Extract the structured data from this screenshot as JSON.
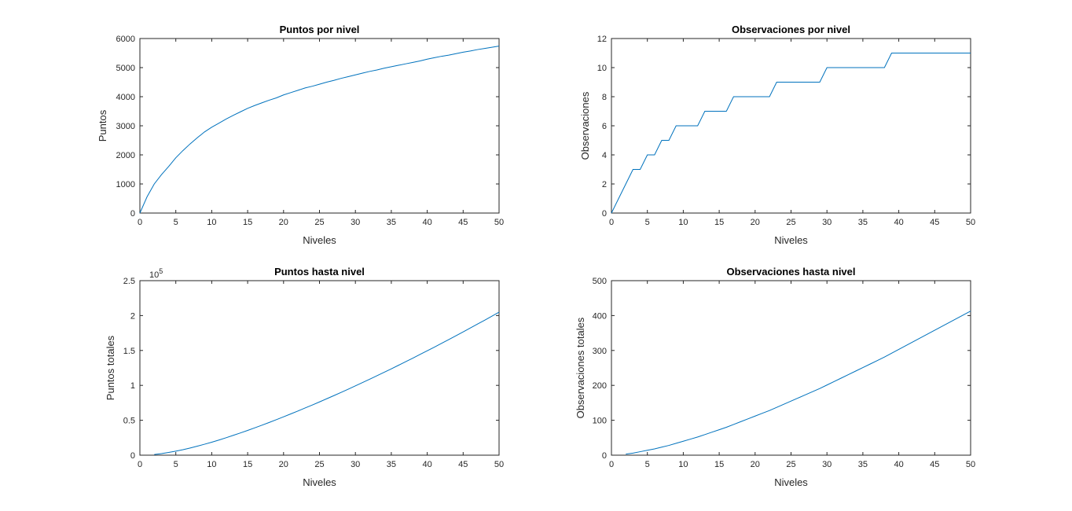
{
  "figure": {
    "background": "#ffffff",
    "line_color": "#0072bd"
  },
  "chart_data": [
    {
      "type": "line",
      "title": "Puntos por nivel",
      "xlabel": "Niveles",
      "ylabel": "Puntos",
      "xlim": [
        0,
        50
      ],
      "ylim": [
        0,
        6000
      ],
      "xticks": [
        0,
        5,
        10,
        15,
        20,
        25,
        30,
        35,
        40,
        45,
        50
      ],
      "yticks": [
        0,
        1000,
        2000,
        3000,
        4000,
        5000,
        6000
      ],
      "ytick_labels": [
        "0",
        "1000",
        "2000",
        "3000",
        "4000",
        "5000",
        "6000"
      ],
      "y_exponent_label": "",
      "grid": false,
      "x": [
        0,
        1,
        2,
        3,
        4,
        5,
        6,
        7,
        8,
        9,
        10,
        11,
        12,
        13,
        14,
        15,
        16,
        17,
        18,
        19,
        20,
        21,
        22,
        23,
        24,
        25,
        26,
        27,
        28,
        29,
        30,
        31,
        32,
        33,
        34,
        35,
        36,
        37,
        38,
        39,
        40,
        41,
        42,
        43,
        44,
        45,
        46,
        47,
        48,
        49,
        50
      ],
      "series": [
        {
          "values": [
            0,
            560,
            1000,
            1320,
            1600,
            1900,
            2150,
            2380,
            2590,
            2790,
            2950,
            3090,
            3230,
            3360,
            3480,
            3600,
            3700,
            3790,
            3880,
            3960,
            4060,
            4140,
            4220,
            4300,
            4360,
            4430,
            4500,
            4560,
            4630,
            4690,
            4750,
            4810,
            4870,
            4920,
            4980,
            5030,
            5080,
            5130,
            5180,
            5230,
            5290,
            5340,
            5390,
            5430,
            5480,
            5530,
            5570,
            5620,
            5660,
            5700,
            5740
          ]
        }
      ]
    },
    {
      "type": "line",
      "title": "Observaciones por nivel",
      "xlabel": "Niveles",
      "ylabel": "Observaciones",
      "xlim": [
        0,
        50
      ],
      "ylim": [
        0,
        12
      ],
      "xticks": [
        0,
        5,
        10,
        15,
        20,
        25,
        30,
        35,
        40,
        45,
        50
      ],
      "yticks": [
        0,
        2,
        4,
        6,
        8,
        10,
        12
      ],
      "ytick_labels": [
        "0",
        "2",
        "4",
        "6",
        "8",
        "10",
        "12"
      ],
      "y_exponent_label": "",
      "grid": false,
      "x": [
        0,
        1,
        2,
        3,
        4,
        5,
        6,
        7,
        8,
        9,
        10,
        11,
        12,
        13,
        14,
        15,
        16,
        17,
        18,
        19,
        20,
        21,
        22,
        23,
        24,
        25,
        26,
        27,
        28,
        29,
        30,
        31,
        32,
        33,
        34,
        35,
        36,
        37,
        38,
        39,
        40,
        41,
        42,
        43,
        44,
        45,
        46,
        47,
        48,
        49,
        50
      ],
      "series": [
        {
          "values": [
            0,
            1,
            2,
            3,
            3,
            4,
            4,
            5,
            5,
            6,
            6,
            6,
            6,
            7,
            7,
            7,
            7,
            8,
            8,
            8,
            8,
            8,
            8,
            9,
            9,
            9,
            9,
            9,
            9,
            9,
            10,
            10,
            10,
            10,
            10,
            10,
            10,
            10,
            10,
            11,
            11,
            11,
            11,
            11,
            11,
            11,
            11,
            11,
            11,
            11,
            11
          ]
        }
      ]
    },
    {
      "type": "line",
      "title": "Puntos hasta nivel",
      "xlabel": "Niveles",
      "ylabel": "Puntos totales",
      "xlim": [
        0,
        50
      ],
      "ylim": [
        0,
        250000
      ],
      "xticks": [
        0,
        5,
        10,
        15,
        20,
        25,
        30,
        35,
        40,
        45,
        50
      ],
      "yticks": [
        0,
        50000,
        100000,
        150000,
        200000,
        250000
      ],
      "ytick_labels": [
        "0",
        "0.5",
        "1",
        "1.5",
        "2",
        "2.5"
      ],
      "y_exponent_label": "10",
      "y_exponent_power": "5",
      "grid": false,
      "x": [
        2,
        3,
        4,
        5,
        6,
        7,
        8,
        9,
        10,
        11,
        12,
        13,
        14,
        15,
        16,
        17,
        18,
        19,
        20,
        21,
        22,
        23,
        24,
        25,
        26,
        27,
        28,
        29,
        30,
        31,
        32,
        33,
        34,
        35,
        36,
        37,
        38,
        39,
        40,
        41,
        42,
        43,
        44,
        45,
        46,
        47,
        48,
        49,
        50
      ],
      "series": [
        {
          "values": [
            1000,
            2300,
            3900,
            5800,
            7900,
            10300,
            12900,
            15700,
            18600,
            21700,
            25000,
            28400,
            31900,
            35500,
            39200,
            43000,
            46900,
            50900,
            55000,
            59100,
            63300,
            67600,
            71900,
            76300,
            80800,
            85300,
            89900,
            94500,
            99300,
            104100,
            108900,
            113800,
            118700,
            123700,
            128800,
            133900,
            139000,
            144300,
            149500,
            154800,
            160200,
            165600,
            171100,
            176600,
            182200,
            187800,
            193400,
            199100,
            204900
          ]
        }
      ]
    },
    {
      "type": "line",
      "title": "Observaciones hasta nivel",
      "xlabel": "Niveles",
      "ylabel": "Observaciones totales",
      "xlim": [
        0,
        50
      ],
      "ylim": [
        0,
        500
      ],
      "xticks": [
        0,
        5,
        10,
        15,
        20,
        25,
        30,
        35,
        40,
        45,
        50
      ],
      "yticks": [
        0,
        100,
        200,
        300,
        400,
        500
      ],
      "ytick_labels": [
        "0",
        "100",
        "200",
        "300",
        "400",
        "500"
      ],
      "y_exponent_label": "",
      "grid": false,
      "x": [
        2,
        3,
        4,
        5,
        6,
        7,
        8,
        9,
        10,
        11,
        12,
        13,
        14,
        15,
        16,
        17,
        18,
        19,
        20,
        21,
        22,
        23,
        24,
        25,
        26,
        27,
        28,
        29,
        30,
        31,
        32,
        33,
        34,
        35,
        36,
        37,
        38,
        39,
        40,
        41,
        42,
        43,
        44,
        45,
        46,
        47,
        48,
        49,
        50
      ],
      "series": [
        {
          "values": [
            3,
            6,
            10,
            14,
            18,
            23,
            28,
            34,
            40,
            46,
            52,
            59,
            66,
            73,
            80,
            88,
            96,
            104,
            112,
            120,
            128,
            137,
            146,
            155,
            164,
            173,
            182,
            191,
            201,
            211,
            221,
            231,
            241,
            251,
            261,
            271,
            281,
            292,
            303,
            314,
            325,
            336,
            347,
            358,
            369,
            380,
            391,
            402,
            413
          ]
        }
      ]
    }
  ]
}
